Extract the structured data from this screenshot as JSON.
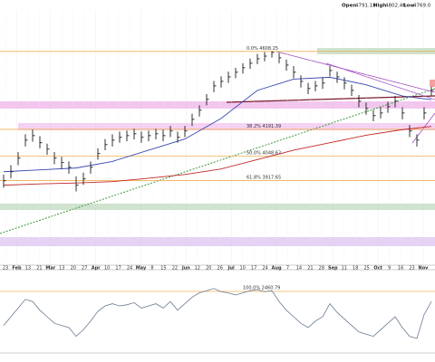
{
  "chart_data": {
    "type": "ohlc",
    "header": [
      "Open",
      "4791.18",
      "High",
      "4802.40",
      "Low",
      "4769.0"
    ],
    "x_labels": [
      "23",
      "Feb",
      "13",
      "21",
      "Mar",
      "13",
      "20",
      "27",
      "Apr",
      "10",
      "17",
      "24",
      "May",
      "8",
      "15",
      "22",
      "Jun",
      "12",
      "20",
      "26",
      "Jul",
      "10",
      "17",
      "24",
      "Aug",
      "7",
      "14",
      "21",
      "28",
      "Sep",
      "11",
      "18",
      "25",
      "Oct",
      "9",
      "16",
      "23",
      "Nov"
    ],
    "month_labels": [
      "Feb",
      "Mar",
      "Apr",
      "May",
      "Jun",
      "Jul",
      "Aug",
      "Sep",
      "Oct",
      "Nov"
    ],
    "ylim": [
      3480,
      4825
    ],
    "bar_color": "#1a1a1a",
    "close": [
      3917,
      3965,
      4038,
      4134,
      4158,
      4120,
      4086,
      4038,
      4014,
      3989,
      3893,
      3927,
      3989,
      4062,
      4110,
      4134,
      4149,
      4158,
      4168,
      4149,
      4158,
      4168,
      4158,
      4183,
      4149,
      4183,
      4245,
      4294,
      4352,
      4424,
      4448,
      4472,
      4497,
      4521,
      4545,
      4569,
      4583,
      4603,
      4574,
      4535,
      4497,
      4448,
      4410,
      4424,
      4439,
      4506,
      4472,
      4439,
      4400,
      4342,
      4303,
      4265,
      4279,
      4313,
      4342,
      4279,
      4183,
      4134,
      4279,
      4400
    ],
    "high": [
      3950,
      4000,
      4070,
      4165,
      4190,
      4155,
      4115,
      4070,
      4045,
      4020,
      3940,
      3960,
      4020,
      4090,
      4140,
      4165,
      4180,
      4185,
      4195,
      4180,
      4185,
      4195,
      4190,
      4210,
      4180,
      4210,
      4275,
      4320,
      4380,
      4450,
      4475,
      4500,
      4520,
      4545,
      4570,
      4595,
      4605,
      4610,
      4600,
      4565,
      4530,
      4480,
      4440,
      4450,
      4470,
      4530,
      4500,
      4470,
      4430,
      4375,
      4335,
      4295,
      4310,
      4340,
      4370,
      4310,
      4215,
      4165,
      4310,
      4420
    ],
    "low": [
      3880,
      3930,
      4000,
      4100,
      4125,
      4090,
      4055,
      4005,
      3980,
      3955,
      3860,
      3895,
      3955,
      4030,
      4080,
      4100,
      4120,
      4128,
      4138,
      4120,
      4128,
      4138,
      4128,
      4150,
      4120,
      4150,
      4210,
      4260,
      4320,
      4390,
      4415,
      4440,
      4465,
      4490,
      4515,
      4540,
      4555,
      4575,
      4545,
      4505,
      4465,
      4415,
      4380,
      4395,
      4408,
      4475,
      4440,
      4405,
      4370,
      4310,
      4270,
      4235,
      4250,
      4280,
      4310,
      4245,
      4150,
      4100,
      4245,
      4370
    ],
    "moving_averages": [
      {
        "color": "#3a48b0",
        "x": [
          0,
          5,
          10,
          15,
          20,
          25,
          30,
          35,
          40,
          45,
          50,
          55,
          59
        ],
        "values": [
          3965,
          3975,
          3985,
          4020,
          4080,
          4140,
          4250,
          4400,
          4460,
          4470,
          4430,
          4370,
          4350
        ]
      },
      {
        "color": "#c02828",
        "x": [
          0,
          5,
          10,
          15,
          20,
          25,
          30,
          35,
          40,
          45,
          50,
          55,
          59
        ],
        "values": [
          3893,
          3900,
          3905,
          3912,
          3930,
          3950,
          3980,
          4030,
          4080,
          4120,
          4160,
          4190,
          4207
        ]
      }
    ],
    "fib_levels": [
      {
        "label": "0.0% 4608.25",
        "value": 4608.25
      },
      {
        "label": "38.2% 4191.39",
        "value": 4191.39
      },
      {
        "label": "50.0% 4048.62",
        "value": 4048.62
      },
      {
        "label": "61.8% 3917.65",
        "value": 3917.65
      }
    ],
    "fib_color": "#f0b050",
    "indicator": {
      "color": "#6a7a90",
      "ylim": [
        20,
        90
      ],
      "level_label": "100.0% 2460.79",
      "values": [
        42,
        50,
        58,
        66,
        64,
        56,
        50,
        44,
        42,
        40,
        32,
        38,
        46,
        55,
        60,
        62,
        60,
        61,
        63,
        58,
        60,
        62,
        58,
        64,
        56,
        62,
        68,
        72,
        74,
        76,
        73,
        72,
        70,
        72,
        74,
        75,
        73,
        74,
        64,
        56,
        50,
        44,
        40,
        46,
        50,
        62,
        54,
        48,
        42,
        36,
        34,
        32,
        38,
        44,
        50,
        40,
        32,
        30,
        52,
        64
      ]
    }
  }
}
